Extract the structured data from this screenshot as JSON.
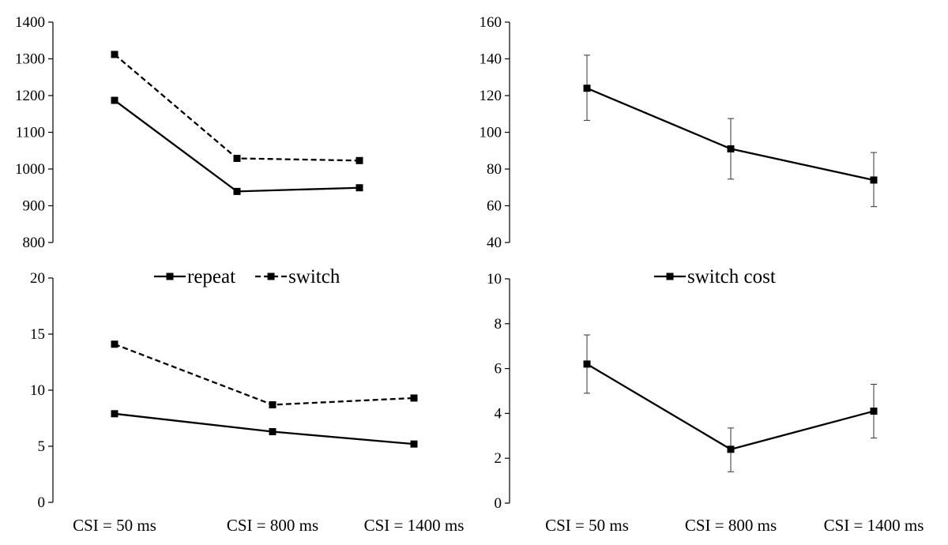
{
  "chart_data": [
    {
      "id": "top-left",
      "type": "line",
      "categories": [
        "CSI = 50 ms",
        "CSI = 800 ms",
        "CSI = 1400 ms"
      ],
      "ylim": [
        800,
        1400
      ],
      "yticks": [
        800,
        900,
        1000,
        1100,
        1200,
        1300,
        1400
      ],
      "show_categories": false,
      "series": [
        {
          "name": "repeat",
          "style": "solid",
          "values": [
            1187,
            939,
            949
          ]
        },
        {
          "name": "switch",
          "style": "dashed",
          "values": [
            1312,
            1029,
            1023
          ]
        }
      ],
      "grid": false
    },
    {
      "id": "top-right",
      "type": "line",
      "categories": [
        "CSI = 50 ms",
        "CSI = 800 ms",
        "CSI = 1400 ms"
      ],
      "ylim": [
        40,
        160
      ],
      "yticks": [
        40,
        60,
        80,
        100,
        120,
        140,
        160
      ],
      "show_categories": false,
      "series": [
        {
          "name": "switch cost",
          "style": "solid",
          "values": [
            124,
            91,
            74
          ],
          "error_low": [
            106.5,
            74.5,
            59.5
          ],
          "error_high": [
            142,
            107.5,
            89
          ]
        }
      ],
      "grid": false
    },
    {
      "id": "bottom-left",
      "type": "line",
      "categories": [
        "CSI = 50 ms",
        "CSI = 800 ms",
        "CSI = 1400 ms"
      ],
      "ylim": [
        0,
        20
      ],
      "yticks": [
        0,
        5,
        10,
        15,
        20
      ],
      "show_categories": true,
      "series": [
        {
          "name": "repeat",
          "style": "solid",
          "values": [
            7.9,
            6.3,
            5.2
          ]
        },
        {
          "name": "switch",
          "style": "dashed",
          "values": [
            14.1,
            8.7,
            9.3
          ]
        }
      ],
      "legend": {
        "placement": "top",
        "entries": [
          "repeat",
          "switch"
        ]
      },
      "grid": false
    },
    {
      "id": "bottom-right",
      "type": "line",
      "categories": [
        "CSI = 50 ms",
        "CSI = 800 ms",
        "CSI = 1400 ms"
      ],
      "ylim": [
        0,
        10
      ],
      "yticks": [
        0,
        2,
        4,
        6,
        8,
        10
      ],
      "show_categories": true,
      "series": [
        {
          "name": "switch cost",
          "style": "solid",
          "values": [
            6.2,
            2.4,
            4.1
          ],
          "error_low": [
            4.9,
            1.4,
            2.9
          ],
          "error_high": [
            7.5,
            3.35,
            5.3
          ]
        }
      ],
      "legend": {
        "placement": "top",
        "entries": [
          "switch cost"
        ]
      },
      "grid": false
    }
  ]
}
